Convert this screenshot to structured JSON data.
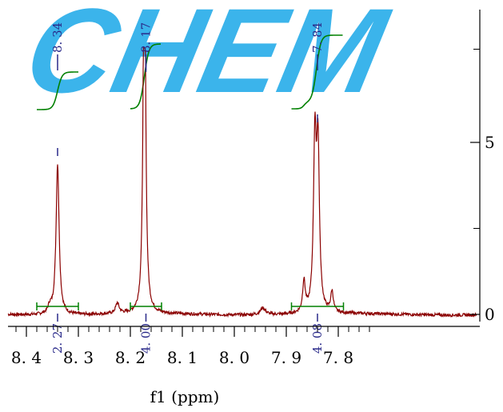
{
  "chart_data": {
    "type": "line",
    "title": "",
    "xlabel": "f1 (ppm)",
    "ylabel": "",
    "x_axis_reversed": true,
    "xlim": [
      8.43,
      7.74
    ],
    "ylim": [
      -1.0,
      9.0
    ],
    "x_ticks": [
      {
        "value": 8.4,
        "label": "8. 4"
      },
      {
        "value": 8.3,
        "label": "8. 3"
      },
      {
        "value": 8.2,
        "label": "8. 2"
      },
      {
        "value": 8.1,
        "label": "8. 1"
      },
      {
        "value": 8.0,
        "label": "8. 0"
      },
      {
        "value": 7.9,
        "label": "7. 9"
      },
      {
        "value": 7.8,
        "label": "7. 8"
      }
    ],
    "y_ticks": [
      {
        "value": 0,
        "label": "0"
      },
      {
        "value": 5,
        "label": "5"
      }
    ],
    "y_minor_ticks": [
      2.5,
      7.5
    ],
    "grid": false,
    "series": [
      {
        "peaks": [
          {
            "ppm": 8.34,
            "height": 4.4,
            "width": 0.0035
          },
          {
            "ppm": 8.173,
            "height": 13.5,
            "width": 0.0025
          },
          {
            "ppm": 7.845,
            "height": 4.8,
            "width": 0.0032
          },
          {
            "ppm": 7.839,
            "height": 4.6,
            "width": 0.0032
          },
          {
            "ppm": 7.866,
            "height": 0.9,
            "width": 0.003
          },
          {
            "ppm": 7.812,
            "height": 0.6,
            "width": 0.003
          },
          {
            "ppm": 8.225,
            "height": 0.3,
            "width": 0.004
          },
          {
            "ppm": 8.355,
            "height": 0.2,
            "width": 0.004
          },
          {
            "ppm": 7.945,
            "height": 0.2,
            "width": 0.006
          }
        ]
      }
    ],
    "peak_labels": [
      {
        "ppm": 8.34,
        "label": "8. 34"
      },
      {
        "ppm": 8.17,
        "label": "8. 17"
      },
      {
        "ppm": 7.84,
        "label": "7. 84"
      }
    ],
    "integrals": [
      {
        "from": 8.38,
        "to": 8.3,
        "value": "2. 27"
      },
      {
        "from": 8.2,
        "to": 8.14,
        "value": "4. 00"
      },
      {
        "from": 7.89,
        "to": 7.79,
        "value": "4. 08"
      }
    ],
    "colors": {
      "spectrum": "#8b0000",
      "integral": "#008000",
      "label": "#2a2a8a",
      "axis": "#000000",
      "watermark": "#1aa7e8"
    },
    "watermark": "CHEM"
  }
}
